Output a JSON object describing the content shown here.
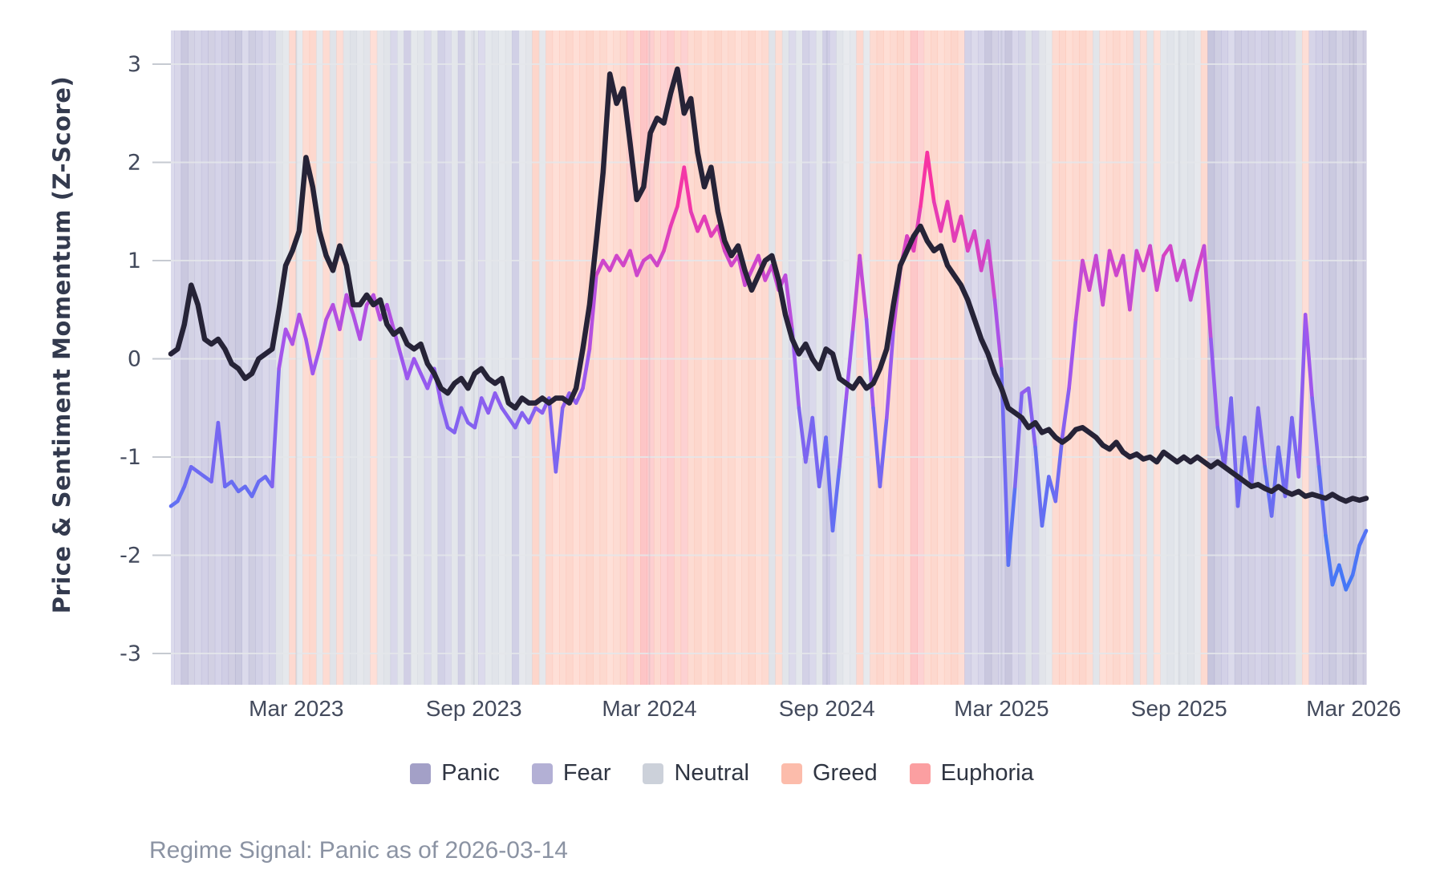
{
  "y_axis_title": "Price & Sentiment Momentum (Z-Score)",
  "caption": "Regime Signal: Panic as of 2026-03-14",
  "legend": {
    "items": [
      {
        "id": "panic",
        "label": "Panic",
        "color": "#a3a0c7"
      },
      {
        "id": "fear",
        "label": "Fear",
        "color": "#b3b0d5"
      },
      {
        "id": "neutral",
        "label": "Neutral",
        "color": "#ccd1da"
      },
      {
        "id": "greed",
        "label": "Greed",
        "color": "#fcbcab"
      },
      {
        "id": "euphoria",
        "label": "Euphoria",
        "color": "#fb9fa1"
      }
    ]
  },
  "chart_data": {
    "type": "line",
    "title": "",
    "xlabel": "",
    "ylabel": "Price & Sentiment Momentum (Z-Score)",
    "ylim": [
      -3.35,
      3.35
    ],
    "grid": true,
    "legend_position": "bottom",
    "x_start": "2022-10-22",
    "x_end": "2026-03-14",
    "x_interval_days": 7,
    "y_ticks": [
      "3",
      "2",
      "1",
      "0",
      "-1",
      "-2",
      "-3"
    ],
    "y_tick_values": [
      3,
      2,
      1,
      0,
      -1,
      -2,
      -3
    ],
    "x_ticks": [
      {
        "label": "Mar 2023",
        "week": 18.57
      },
      {
        "label": "Sep 2023",
        "week": 44.86
      },
      {
        "label": "Mar 2024",
        "week": 70.86
      },
      {
        "label": "Sep 2024",
        "week": 97.14
      },
      {
        "label": "Mar 2025",
        "week": 123.0
      },
      {
        "label": "Sep 2025",
        "week": 149.29
      },
      {
        "label": "Mar 2026",
        "week": 175.14
      }
    ],
    "series": [
      {
        "name": "price-momentum",
        "color": "#262337",
        "values": [
          0.05,
          0.1,
          0.35,
          0.75,
          0.55,
          0.2,
          0.15,
          0.2,
          0.1,
          -0.05,
          -0.1,
          -0.2,
          -0.15,
          0,
          0.05,
          0.1,
          0.5,
          0.95,
          1.1,
          1.3,
          2.05,
          1.75,
          1.3,
          1.05,
          0.9,
          1.15,
          0.95,
          0.55,
          0.55,
          0.65,
          0.55,
          0.6,
          0.35,
          0.25,
          0.3,
          0.15,
          0.1,
          0.15,
          -0.05,
          -0.15,
          -0.3,
          -0.35,
          -0.25,
          -0.2,
          -0.3,
          -0.15,
          -0.1,
          -0.2,
          -0.25,
          -0.2,
          -0.45,
          -0.5,
          -0.4,
          -0.45,
          -0.45,
          -0.4,
          -0.45,
          -0.4,
          -0.4,
          -0.45,
          -0.3,
          0.1,
          0.55,
          1.2,
          1.9,
          2.9,
          2.6,
          2.75,
          2.2,
          1.62,
          1.75,
          2.3,
          2.45,
          2.4,
          2.7,
          2.95,
          2.5,
          2.65,
          2.1,
          1.75,
          1.95,
          1.5,
          1.2,
          1.05,
          1.15,
          0.9,
          0.7,
          0.85,
          1.0,
          1.05,
          0.8,
          0.45,
          0.2,
          0.05,
          0.15,
          0.0,
          -0.1,
          0.1,
          0.05,
          -0.2,
          -0.25,
          -0.3,
          -0.2,
          -0.3,
          -0.25,
          -0.1,
          0.1,
          0.55,
          0.95,
          1.1,
          1.25,
          1.35,
          1.2,
          1.1,
          1.15,
          0.95,
          0.85,
          0.75,
          0.6,
          0.4,
          0.2,
          0.05,
          -0.15,
          -0.3,
          -0.5,
          -0.55,
          -0.6,
          -0.7,
          -0.65,
          -0.75,
          -0.72,
          -0.8,
          -0.85,
          -0.8,
          -0.72,
          -0.7,
          -0.75,
          -0.8,
          -0.88,
          -0.92,
          -0.85,
          -0.95,
          -1.0,
          -0.97,
          -1.02,
          -1.0,
          -1.05,
          -0.95,
          -1.0,
          -1.05,
          -1.0,
          -1.05,
          -1.0,
          -1.05,
          -1.1,
          -1.05,
          -1.1,
          -1.15,
          -1.2,
          -1.25,
          -1.3,
          -1.28,
          -1.32,
          -1.35,
          -1.3,
          -1.35,
          -1.38,
          -1.35,
          -1.4,
          -1.38,
          -1.4,
          -1.42,
          -1.38,
          -1.42,
          -1.45,
          -1.42,
          -1.44,
          -1.42
        ]
      },
      {
        "name": "sentiment-momentum",
        "color": "value-gradient",
        "values": [
          -1.5,
          -1.45,
          -1.3,
          -1.1,
          -1.15,
          -1.2,
          -1.25,
          -0.65,
          -1.3,
          -1.25,
          -1.35,
          -1.3,
          -1.4,
          -1.25,
          -1.2,
          -1.3,
          -0.1,
          0.3,
          0.15,
          0.45,
          0.2,
          -0.15,
          0.1,
          0.4,
          0.55,
          0.3,
          0.65,
          0.45,
          0.2,
          0.55,
          0.65,
          0.4,
          0.55,
          0.3,
          0.05,
          -0.2,
          0.0,
          -0.15,
          -0.3,
          -0.1,
          -0.45,
          -0.7,
          -0.75,
          -0.5,
          -0.65,
          -0.7,
          -0.4,
          -0.55,
          -0.35,
          -0.5,
          -0.6,
          -0.7,
          -0.55,
          -0.65,
          -0.5,
          -0.55,
          -0.4,
          -1.15,
          -0.5,
          -0.35,
          -0.45,
          -0.3,
          0.1,
          0.85,
          1.0,
          0.9,
          1.05,
          0.95,
          1.1,
          0.85,
          1.0,
          1.05,
          0.95,
          1.1,
          1.35,
          1.55,
          1.95,
          1.5,
          1.3,
          1.45,
          1.25,
          1.35,
          1.1,
          0.95,
          1.05,
          0.75,
          0.9,
          1.05,
          0.8,
          0.95,
          0.7,
          0.85,
          0.3,
          -0.5,
          -1.05,
          -0.6,
          -1.3,
          -0.8,
          -1.75,
          -1.1,
          -0.4,
          0.3,
          1.05,
          0.4,
          -0.5,
          -1.3,
          -0.6,
          0.3,
          0.9,
          1.25,
          1.1,
          1.55,
          2.1,
          1.6,
          1.3,
          1.6,
          1.2,
          1.45,
          1.1,
          1.3,
          0.9,
          1.2,
          0.6,
          -0.1,
          -2.1,
          -1.3,
          -0.35,
          -0.3,
          -0.9,
          -1.7,
          -1.2,
          -1.45,
          -0.8,
          -0.3,
          0.4,
          1.0,
          0.7,
          1.05,
          0.55,
          1.1,
          0.85,
          1.05,
          0.5,
          1.1,
          0.9,
          1.15,
          0.7,
          1.05,
          1.15,
          0.8,
          1.0,
          0.6,
          0.9,
          1.15,
          0.2,
          -0.7,
          -1.1,
          -0.4,
          -1.5,
          -0.8,
          -1.3,
          -0.5,
          -1.1,
          -1.6,
          -0.9,
          -1.4,
          -0.6,
          -1.2,
          0.45,
          -0.4,
          -1.1,
          -1.8,
          -2.3,
          -2.1,
          -2.35,
          -2.2,
          -1.9,
          -1.75
        ]
      }
    ],
    "regimes": [
      "F",
      "F",
      "P",
      "P",
      "F",
      "F",
      "P",
      "F",
      "F",
      "P",
      "P",
      "F",
      "P",
      "F",
      "F",
      "F",
      "N",
      "N",
      "G",
      "N",
      "G",
      "G",
      "N",
      "G",
      "N",
      "G",
      "N",
      "N",
      "N",
      "N",
      "G",
      "N",
      "N",
      "F",
      "N",
      "F",
      "N",
      "N",
      "F",
      "N",
      "F",
      "F",
      "N",
      "F",
      "N",
      "N",
      "F",
      "N",
      "N",
      "N",
      "N",
      "F",
      "N",
      "N",
      "G",
      "N",
      "G",
      "G",
      "G",
      "G",
      "G",
      "G",
      "G",
      "G",
      "G",
      "G",
      "G",
      "G",
      "E",
      "G",
      "E",
      "E",
      "G",
      "E",
      "E",
      "G",
      "E",
      "G",
      "G",
      "G",
      "G",
      "G",
      "G",
      "G",
      "G",
      "G",
      "G",
      "G",
      "G",
      "N",
      "G",
      "N",
      "F",
      "N",
      "F",
      "F",
      "N",
      "F",
      "F",
      "N",
      "N",
      "N",
      "G",
      "N",
      "G",
      "G",
      "G",
      "G",
      "G",
      "G",
      "E",
      "E",
      "G",
      "G",
      "G",
      "G",
      "G",
      "G",
      "F",
      "F",
      "F",
      "P",
      "P",
      "F",
      "P",
      "F",
      "F",
      "N",
      "F",
      "N",
      "N",
      "G",
      "G",
      "G",
      "G",
      "G",
      "G",
      "N",
      "G",
      "G",
      "G",
      "G",
      "G",
      "N",
      "G",
      "N",
      "G",
      "N",
      "N",
      "N",
      "N",
      "N",
      "N",
      "G",
      "P",
      "P",
      "F",
      "F",
      "P",
      "F",
      "P",
      "F",
      "F",
      "P",
      "F",
      "P",
      "F",
      "N",
      "G",
      "F",
      "F",
      "P",
      "P",
      "P",
      "P",
      "P",
      "P",
      "P"
    ],
    "regime_colors": {
      "P": "#a3a0c7",
      "F": "#b3b0d5",
      "N": "#ccd1da",
      "G": "#fcbcab",
      "E": "#fb9fa1"
    },
    "regime_names": {
      "P": "Panic",
      "F": "Fear",
      "N": "Neutral",
      "G": "Greed",
      "E": "Euphoria"
    },
    "sentiment_gradient": [
      [
        -2.5,
        "#3c7af8"
      ],
      [
        -1.5,
        "#6070f3"
      ],
      [
        -0.7,
        "#8163f0"
      ],
      [
        0.0,
        "#9f56ee"
      ],
      [
        0.7,
        "#c04cd8"
      ],
      [
        1.3,
        "#e03fb9"
      ],
      [
        1.8,
        "#f635a4"
      ],
      [
        2.3,
        "#ff2d9b"
      ]
    ]
  },
  "colors": {
    "background": "#ffffff",
    "gridline": "#e4e6ea",
    "tick_dash": "#c6cad1",
    "tick_label": "#434a5c",
    "axis_title": "#333a4e",
    "legend_text": "#2f3542",
    "caption_text": "#8b93a3",
    "price_line": "#262337"
  }
}
